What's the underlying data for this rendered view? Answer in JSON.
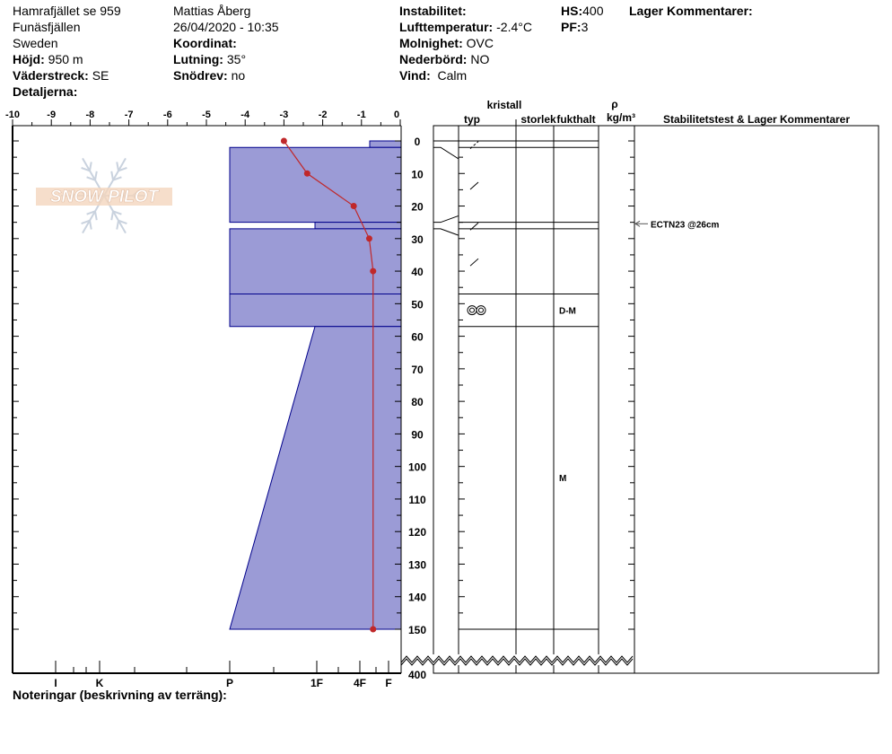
{
  "site": {
    "name": "Hamrafjället se 959",
    "range": "Funäsfjällen",
    "country": "Sweden",
    "elevation_label": "Höjd:",
    "elevation": "950 m",
    "aspect_label": "Väderstreck:",
    "aspect": "SE",
    "details_label": "Detaljerna:"
  },
  "observer": {
    "name": "Mattias Åberg",
    "datetime": "26/04/2020 - 10:35",
    "coordinate_label": "Koordinat:",
    "slope_label": "Lutning:",
    "slope": "35°",
    "wind_loading_label": "Snödrev:",
    "wind_loading": "no"
  },
  "weather": {
    "instability_label": "Instabilitet:",
    "air_temp_label": "Lufttemperatur:",
    "air_temp": "-2.4°C",
    "sky_label": "Molnighet:",
    "sky": "OVC",
    "precip_label": "Nederbörd:",
    "precip": "NO",
    "wind_label": "Vind:",
    "wind": "Calm"
  },
  "snow": {
    "hs_label": "HS:",
    "hs": "400",
    "pf_label": "PF:",
    "pf": "3"
  },
  "layer_comments_label": "Lager Kommentarer:",
  "notes_label": "Noteringar (beskrivning av terräng):",
  "logo_text": "SNOW PILOT",
  "table_headers": {
    "crystal": "kristall",
    "type": "typ",
    "size": "storlek",
    "moisture": "fukthalt",
    "rho": "ρ",
    "density_unit": "kg/m³",
    "stability": "Stabilitetstest & Lager Kommentarer"
  },
  "colors": {
    "layer_fill": "#9b9bd6",
    "layer_stroke": "#00008b",
    "temp_line": "#c0282a"
  },
  "chart_data": {
    "type": "snow-profile",
    "temperature_axis": {
      "ticks": [
        "-10",
        "-9",
        "-8",
        "-7",
        "-6",
        "-5",
        "-4",
        "-3",
        "-2",
        "-1",
        "0"
      ],
      "range": [
        -10,
        0
      ]
    },
    "hardness_axis": {
      "ticks": [
        "I",
        "K",
        "P",
        "1F",
        "4F",
        "F"
      ]
    },
    "depth_axis": {
      "ticks": [
        "0",
        "10",
        "20",
        "30",
        "40",
        "50",
        "60",
        "70",
        "80",
        "90",
        "100",
        "110",
        "120",
        "130",
        "140",
        "150"
      ],
      "break_label": "400"
    },
    "layers": [
      {
        "top": 0,
        "bottom": 2,
        "hardness_top": "F+",
        "hardness_bottom": "F+",
        "grain": "decomposing",
        "moisture": ""
      },
      {
        "top": 2,
        "bottom": 25,
        "hardness_top": "P",
        "hardness_bottom": "P",
        "grain": "decomposing",
        "moisture": ""
      },
      {
        "top": 25,
        "bottom": 27,
        "hardness_top": "1F",
        "hardness_bottom": "1F",
        "grain": "decomposing",
        "moisture": ""
      },
      {
        "top": 27,
        "bottom": 47,
        "hardness_top": "P",
        "hardness_bottom": "P",
        "grain": "decomposing",
        "moisture": ""
      },
      {
        "top": 47,
        "bottom": 57,
        "hardness_top": "P",
        "hardness_bottom": "P",
        "grain": "melt-freeze",
        "moisture": "D-M"
      },
      {
        "top": 57,
        "bottom": 150,
        "hardness_top": "1F",
        "hardness_bottom": "P",
        "grain": "",
        "moisture": "M"
      }
    ],
    "temperatures": [
      {
        "depth": 0,
        "temp": -3.0
      },
      {
        "depth": 10,
        "temp": -2.4
      },
      {
        "depth": 20,
        "temp": -1.2
      },
      {
        "depth": 30,
        "temp": -0.8
      },
      {
        "depth": 40,
        "temp": -0.7
      },
      {
        "depth": 150,
        "temp": -0.7
      }
    ],
    "stability_tests": [
      {
        "depth": 26,
        "label": "ECTN23 @26cm"
      }
    ]
  }
}
